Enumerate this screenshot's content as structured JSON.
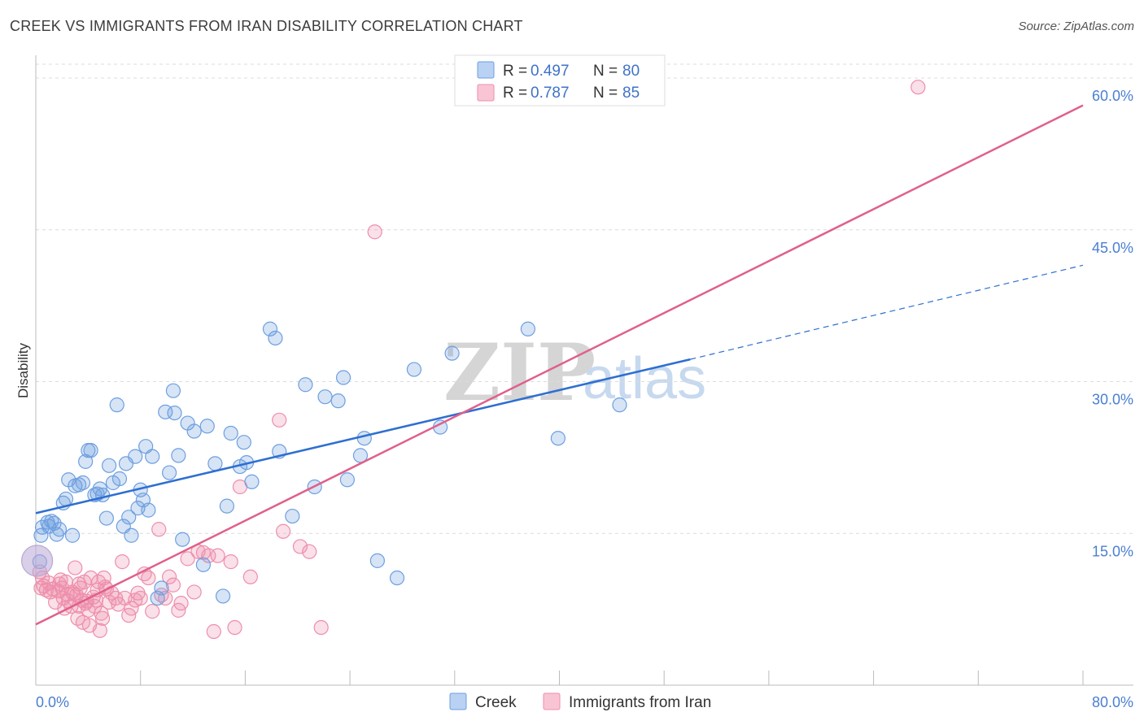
{
  "title": "CREEK VS IMMIGRANTS FROM IRAN DISABILITY CORRELATION CHART",
  "source": "Source: ZipAtlas.com",
  "watermark": {
    "part1": "ZIP",
    "part2": "atlas"
  },
  "colors": {
    "creek": "#6d9fe0",
    "creek_line": "#2e6fd1",
    "iran": "#ee8eab",
    "iran_line": "#e0608b",
    "tick": "#4a7fd1"
  },
  "legend": {
    "rows": [
      {
        "r_label": "R =",
        "r_value": "0.497",
        "n_label": "N =",
        "n_value": "80"
      },
      {
        "r_label": "R =",
        "r_value": "0.787",
        "n_label": "N =",
        "n_value": "85"
      }
    ]
  },
  "bottom_legend": {
    "series1": "Creek",
    "series2": "Immigrants from Iran"
  },
  "chart_data": {
    "type": "scatter",
    "title": "CREEK VS IMMIGRANTS FROM IRAN DISABILITY CORRELATION CHART",
    "xlabel": "",
    "ylabel": "Disability",
    "xlim": [
      0,
      80
    ],
    "ylim": [
      0,
      60
    ],
    "x_tick_labels": {
      "left": "0.0%",
      "right": "80.0%"
    },
    "y_ticks": [
      {
        "value": 15,
        "label": "15.0%"
      },
      {
        "value": 30,
        "label": "30.0%"
      },
      {
        "value": 45,
        "label": "45.0%"
      },
      {
        "value": 60,
        "label": "60.0%"
      }
    ],
    "series": [
      {
        "name": "Creek",
        "r": 0.497,
        "n": 80,
        "trend": {
          "x0": 0,
          "y0": 17.0,
          "x1": 50,
          "y1": 32.2,
          "dash_x1": 80,
          "dash_y1": 41.5
        },
        "points": [
          [
            0.3,
            12.2
          ],
          [
            0.4,
            14.8
          ],
          [
            0.5,
            15.6
          ],
          [
            0.9,
            16.1
          ],
          [
            1.0,
            15.7
          ],
          [
            1.2,
            16.2
          ],
          [
            1.4,
            16.0
          ],
          [
            1.6,
            14.9
          ],
          [
            1.8,
            15.4
          ],
          [
            2.1,
            18.0
          ],
          [
            2.3,
            18.4
          ],
          [
            2.5,
            20.3
          ],
          [
            2.8,
            14.8
          ],
          [
            3.0,
            19.7
          ],
          [
            3.3,
            19.8
          ],
          [
            3.6,
            20.0
          ],
          [
            3.8,
            22.1
          ],
          [
            4.0,
            23.2
          ],
          [
            4.2,
            23.2
          ],
          [
            4.5,
            18.8
          ],
          [
            4.7,
            18.9
          ],
          [
            4.9,
            19.4
          ],
          [
            5.1,
            18.8
          ],
          [
            5.4,
            16.5
          ],
          [
            5.6,
            21.7
          ],
          [
            5.9,
            20.0
          ],
          [
            6.2,
            27.7
          ],
          [
            6.4,
            20.4
          ],
          [
            6.7,
            15.7
          ],
          [
            6.9,
            21.9
          ],
          [
            7.1,
            16.6
          ],
          [
            7.3,
            14.8
          ],
          [
            7.6,
            22.6
          ],
          [
            7.8,
            17.5
          ],
          [
            8.0,
            19.3
          ],
          [
            8.2,
            18.3
          ],
          [
            8.4,
            23.6
          ],
          [
            8.6,
            17.3
          ],
          [
            8.9,
            22.6
          ],
          [
            9.3,
            8.6
          ],
          [
            9.6,
            9.6
          ],
          [
            9.9,
            27.0
          ],
          [
            10.2,
            21.0
          ],
          [
            10.5,
            29.1
          ],
          [
            10.6,
            26.9
          ],
          [
            10.9,
            22.7
          ],
          [
            11.2,
            14.4
          ],
          [
            11.6,
            25.9
          ],
          [
            12.1,
            25.1
          ],
          [
            12.8,
            11.9
          ],
          [
            13.1,
            25.6
          ],
          [
            13.7,
            21.9
          ],
          [
            14.3,
            8.8
          ],
          [
            14.6,
            17.7
          ],
          [
            14.9,
            24.9
          ],
          [
            15.6,
            21.6
          ],
          [
            15.9,
            24.0
          ],
          [
            16.1,
            22.0
          ],
          [
            16.5,
            20.1
          ],
          [
            17.9,
            35.2
          ],
          [
            18.3,
            34.3
          ],
          [
            18.6,
            23.1
          ],
          [
            19.6,
            16.7
          ],
          [
            20.6,
            29.7
          ],
          [
            21.3,
            19.6
          ],
          [
            22.1,
            28.5
          ],
          [
            23.1,
            28.1
          ],
          [
            23.5,
            30.4
          ],
          [
            23.8,
            20.3
          ],
          [
            24.8,
            22.7
          ],
          [
            25.1,
            24.4
          ],
          [
            26.1,
            12.3
          ],
          [
            27.6,
            10.6
          ],
          [
            28.9,
            31.2
          ],
          [
            30.9,
            25.5
          ],
          [
            31.8,
            32.8
          ],
          [
            37.6,
            35.2
          ],
          [
            39.9,
            24.4
          ],
          [
            44.6,
            27.7
          ],
          [
            0.1,
            12.3
          ]
        ]
      },
      {
        "name": "Immigrants from Iran",
        "r": 0.787,
        "n": 85,
        "trend": {
          "x0": 0,
          "y0": 6.0,
          "x1": 80,
          "y1": 57.3
        },
        "points": [
          [
            0.3,
            11.2
          ],
          [
            0.5,
            10.6
          ],
          [
            0.6,
            9.8
          ],
          [
            0.8,
            9.4
          ],
          [
            1.0,
            10.1
          ],
          [
            1.1,
            9.2
          ],
          [
            1.3,
            9.5
          ],
          [
            1.5,
            8.2
          ],
          [
            1.7,
            9.3
          ],
          [
            1.9,
            10.4
          ],
          [
            2.0,
            9.6
          ],
          [
            2.1,
            8.6
          ],
          [
            2.2,
            7.6
          ],
          [
            2.3,
            10.2
          ],
          [
            2.4,
            9.0
          ],
          [
            2.5,
            8.3
          ],
          [
            2.7,
            7.8
          ],
          [
            2.8,
            9.2
          ],
          [
            2.9,
            9.0
          ],
          [
            3.0,
            11.6
          ],
          [
            3.1,
            8.9
          ],
          [
            3.2,
            6.6
          ],
          [
            3.3,
            7.8
          ],
          [
            3.4,
            9.6
          ],
          [
            3.5,
            8.4
          ],
          [
            3.6,
            6.2
          ],
          [
            3.7,
            10.2
          ],
          [
            3.8,
            8.1
          ],
          [
            3.9,
            8.3
          ],
          [
            4.0,
            7.4
          ],
          [
            4.1,
            5.9
          ],
          [
            4.2,
            10.6
          ],
          [
            4.4,
            8.7
          ],
          [
            4.5,
            7.8
          ],
          [
            4.6,
            8.4
          ],
          [
            4.7,
            9.4
          ],
          [
            4.8,
            10.2
          ],
          [
            4.9,
            5.4
          ],
          [
            5.0,
            7.1
          ],
          [
            5.1,
            6.6
          ],
          [
            5.2,
            10.6
          ],
          [
            5.3,
            9.7
          ],
          [
            5.4,
            9.5
          ],
          [
            5.6,
            8.2
          ],
          [
            5.8,
            9.1
          ],
          [
            6.1,
            8.6
          ],
          [
            6.3,
            8.0
          ],
          [
            6.6,
            12.2
          ],
          [
            6.8,
            8.6
          ],
          [
            7.1,
            6.9
          ],
          [
            7.3,
            7.6
          ],
          [
            7.6,
            8.4
          ],
          [
            7.8,
            9.1
          ],
          [
            8.0,
            8.6
          ],
          [
            8.3,
            11.0
          ],
          [
            8.6,
            10.6
          ],
          [
            8.9,
            7.3
          ],
          [
            9.4,
            15.4
          ],
          [
            9.6,
            8.9
          ],
          [
            9.9,
            8.6
          ],
          [
            10.2,
            10.7
          ],
          [
            10.5,
            9.9
          ],
          [
            10.9,
            7.4
          ],
          [
            11.1,
            8.1
          ],
          [
            11.6,
            12.5
          ],
          [
            12.1,
            9.2
          ],
          [
            12.4,
            13.2
          ],
          [
            12.8,
            13.1
          ],
          [
            13.2,
            12.8
          ],
          [
            13.6,
            5.3
          ],
          [
            13.9,
            12.8
          ],
          [
            14.9,
            12.2
          ],
          [
            15.2,
            5.7
          ],
          [
            15.6,
            19.6
          ],
          [
            16.4,
            10.7
          ],
          [
            18.6,
            26.2
          ],
          [
            18.9,
            15.2
          ],
          [
            20.2,
            13.7
          ],
          [
            20.9,
            13.2
          ],
          [
            21.8,
            5.7
          ],
          [
            25.9,
            44.8
          ],
          [
            67.4,
            59.1
          ],
          [
            1.8,
            10.0
          ],
          [
            0.4,
            9.6
          ],
          [
            3.3,
            10.0
          ]
        ]
      }
    ]
  }
}
